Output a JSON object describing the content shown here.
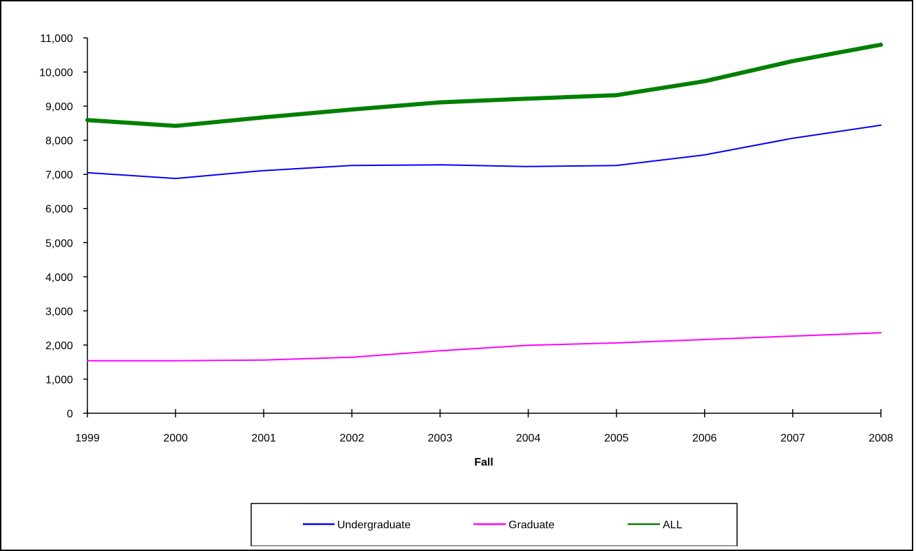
{
  "chart_data": {
    "type": "line",
    "title": "",
    "xlabel": "Fall",
    "ylabel": "",
    "x": [
      "1999",
      "2000",
      "2001",
      "2002",
      "2003",
      "2004",
      "2005",
      "2006",
      "2007",
      "2008"
    ],
    "ylim": [
      0,
      11000
    ],
    "yticks": [
      0,
      1000,
      2000,
      3000,
      4000,
      5000,
      6000,
      7000,
      8000,
      9000,
      10000,
      11000
    ],
    "ytick_labels": [
      "0",
      "1,000",
      "2,000",
      "3,000",
      "4,000",
      "5,000",
      "6,000",
      "7,000",
      "8,000",
      "9,000",
      "10,000",
      "11,000"
    ],
    "grid": false,
    "legend_position": "bottom",
    "series": [
      {
        "name": "Undergraduate",
        "color": "#0000ff",
        "values": [
          7050,
          6880,
          7110,
          7260,
          7280,
          7230,
          7260,
          7570,
          8060,
          8440
        ]
      },
      {
        "name": "Graduate",
        "color": "#ff00ff",
        "values": [
          1540,
          1540,
          1560,
          1640,
          1830,
          1990,
          2060,
          2160,
          2260,
          2360
        ]
      },
      {
        "name": "ALL",
        "color": "#008000",
        "values": [
          8590,
          8420,
          8670,
          8900,
          9110,
          9220,
          9320,
          9730,
          10320,
          10800
        ]
      }
    ]
  }
}
